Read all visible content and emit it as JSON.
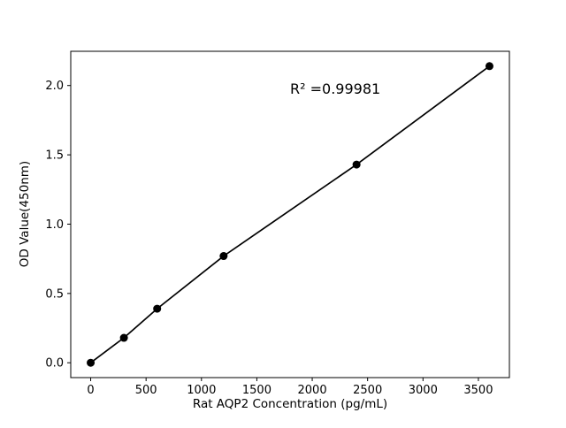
{
  "chart_data": {
    "type": "line",
    "subtype": "scatter-with-line",
    "title": "",
    "xlabel": "Rat AQP2 Concentration (pg/mL)",
    "ylabel": "OD Value(450nm)",
    "x": [
      0,
      300,
      600,
      1200,
      2400,
      3600
    ],
    "y": [
      0.0,
      0.18,
      0.39,
      0.77,
      1.43,
      2.14
    ],
    "xlim": [
      -180,
      3780
    ],
    "ylim": [
      -0.107,
      2.247
    ],
    "xticks": [
      "0",
      "500",
      "1000",
      "1500",
      "2000",
      "2500",
      "3000",
      "3500"
    ],
    "yticks": [
      "0.0",
      "0.5",
      "1.0",
      "1.5",
      "2.0"
    ],
    "annotation": {
      "text": "R² =0.99981"
    },
    "line_color": "#000000",
    "marker_color": "#000000",
    "marker": "circle",
    "background": "#ffffff",
    "grid": false,
    "legend": "none"
  }
}
